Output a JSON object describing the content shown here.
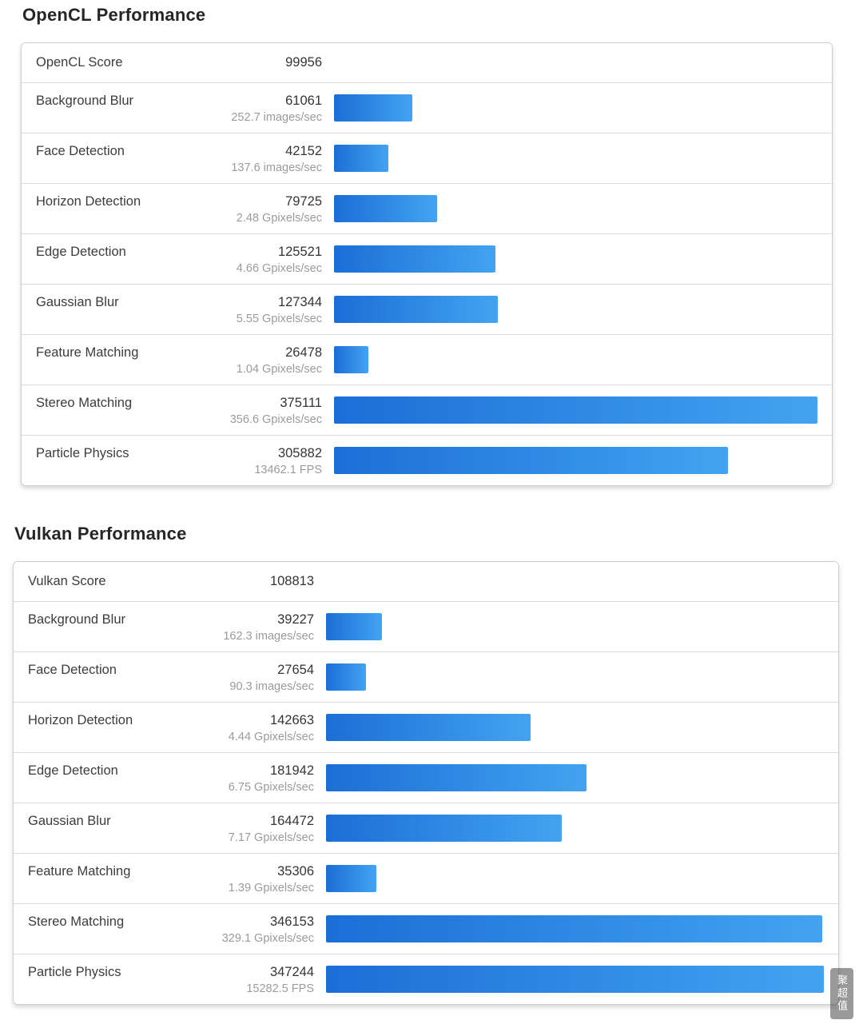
{
  "colors": {
    "bar_start": "#1b6ed6",
    "bar_end": "#43a3f1",
    "title_text": "#262626",
    "rate_text": "#9b9b9b"
  },
  "watermark": {
    "text": "聚超值"
  },
  "chart_data": [
    {
      "type": "bar",
      "title": "OpenCL Performance",
      "score_label": "OpenCL Score",
      "score": 99956,
      "max_value": 375111,
      "legend_position": "none",
      "grid": false,
      "rows": [
        {
          "label": "Background Blur",
          "value": 61061,
          "rate": "252.7 images/sec"
        },
        {
          "label": "Face Detection",
          "value": 42152,
          "rate": "137.6 images/sec"
        },
        {
          "label": "Horizon Detection",
          "value": 79725,
          "rate": "2.48 Gpixels/sec"
        },
        {
          "label": "Edge Detection",
          "value": 125521,
          "rate": "4.66 Gpixels/sec"
        },
        {
          "label": "Gaussian Blur",
          "value": 127344,
          "rate": "5.55 Gpixels/sec"
        },
        {
          "label": "Feature Matching",
          "value": 26478,
          "rate": "1.04 Gpixels/sec"
        },
        {
          "label": "Stereo Matching",
          "value": 375111,
          "rate": "356.6 Gpixels/sec"
        },
        {
          "label": "Particle Physics",
          "value": 305882,
          "rate": "13462.1 FPS"
        }
      ]
    },
    {
      "type": "bar",
      "title": "Vulkan Performance",
      "score_label": "Vulkan Score",
      "score": 108813,
      "max_value": 347244,
      "legend_position": "none",
      "grid": false,
      "rows": [
        {
          "label": "Background Blur",
          "value": 39227,
          "rate": "162.3 images/sec"
        },
        {
          "label": "Face Detection",
          "value": 27654,
          "rate": "90.3 images/sec"
        },
        {
          "label": "Horizon Detection",
          "value": 142663,
          "rate": "4.44 Gpixels/sec"
        },
        {
          "label": "Edge Detection",
          "value": 181942,
          "rate": "6.75 Gpixels/sec"
        },
        {
          "label": "Gaussian Blur",
          "value": 164472,
          "rate": "7.17 Gpixels/sec"
        },
        {
          "label": "Feature Matching",
          "value": 35306,
          "rate": "1.39 Gpixels/sec"
        },
        {
          "label": "Stereo Matching",
          "value": 346153,
          "rate": "329.1 Gpixels/sec"
        },
        {
          "label": "Particle Physics",
          "value": 347244,
          "rate": "15282.5 FPS"
        }
      ]
    }
  ]
}
